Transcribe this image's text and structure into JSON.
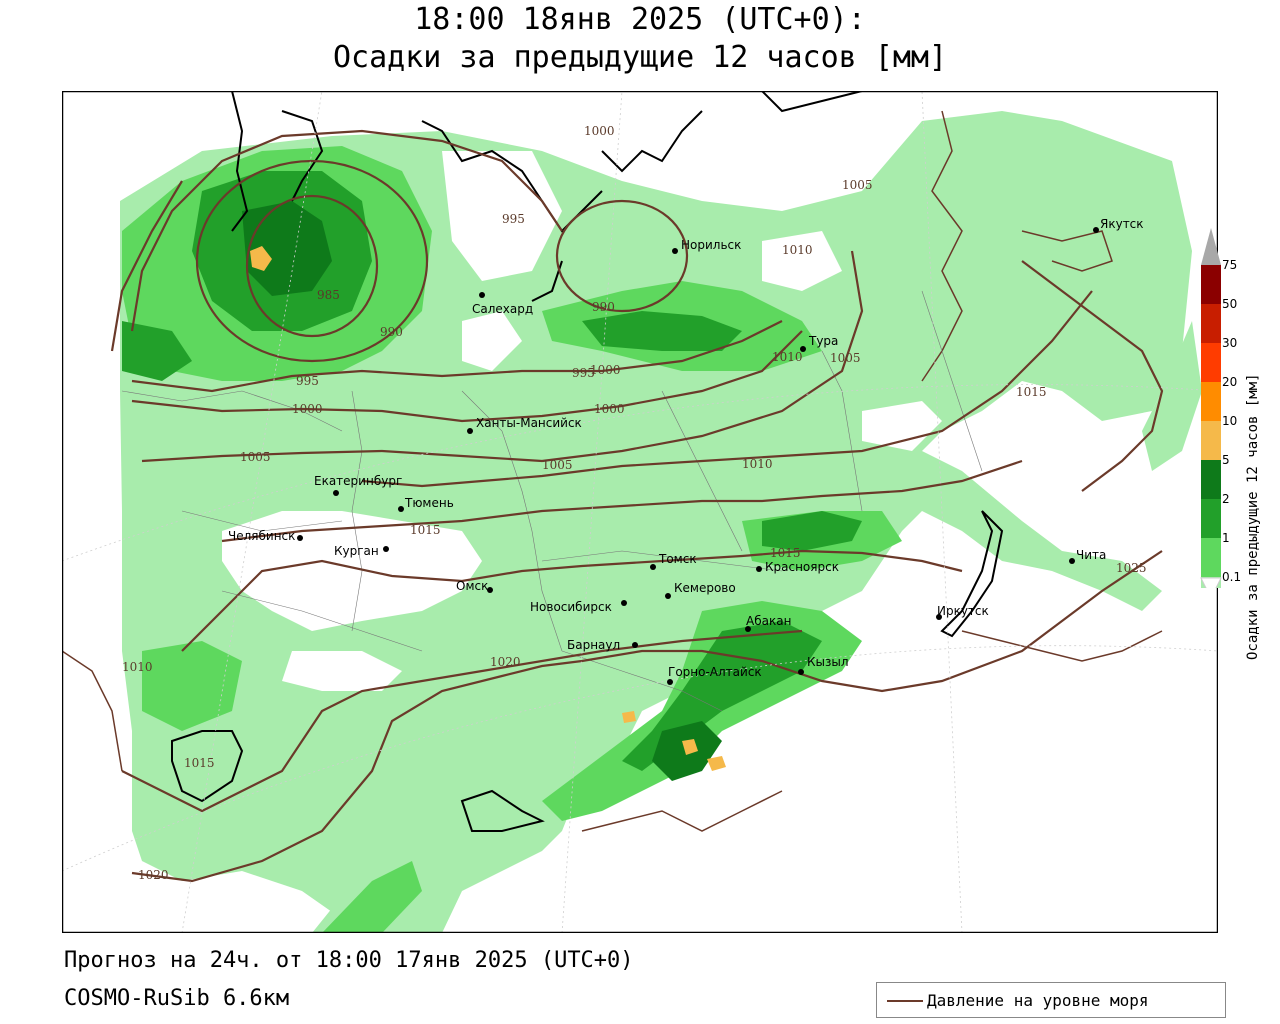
{
  "title_line1": "18:00 18янв 2025 (UTC+0):",
  "title_line2": "Осадки за предыдущие 12 часов [мм]",
  "footer_forecast": "Прогноз на 24ч. от 18:00 17янв 2025 (UTC+0)",
  "footer_model": "COSMO-RuSib 6.6км",
  "legend_pressure": "Давление на уровне моря",
  "scale_title": "Осадки за предыдущие 12 часов [мм]",
  "scale": [
    {
      "label": "75",
      "color": "#8b0000"
    },
    {
      "label": "50",
      "color": "#c81e00"
    },
    {
      "label": "30",
      "color": "#ff3c00"
    },
    {
      "label": "20",
      "color": "#ff8c00"
    },
    {
      "label": "10",
      "color": "#f5b94a"
    },
    {
      "label": "5",
      "color": "#0e7a1a"
    },
    {
      "label": "2",
      "color": "#22a02a"
    },
    {
      "label": "1",
      "color": "#5ed85e"
    },
    {
      "label": "0.1",
      "color": "#a8ecac"
    }
  ],
  "cities": [
    {
      "name": "Якутск"
    },
    {
      "name": "Норильск"
    },
    {
      "name": "Салехард"
    },
    {
      "name": "Тура"
    },
    {
      "name": "Ханты-Мансийск"
    },
    {
      "name": "Екатеринбург"
    },
    {
      "name": "Тюмень"
    },
    {
      "name": "Челябинск"
    },
    {
      "name": "Курган"
    },
    {
      "name": "Омск"
    },
    {
      "name": "Новосибирск"
    },
    {
      "name": "Томск"
    },
    {
      "name": "Красноярск"
    },
    {
      "name": "Кемерово"
    },
    {
      "name": "Барнаул"
    },
    {
      "name": "Абакан"
    },
    {
      "name": "Горно-Алтайск"
    },
    {
      "name": "Кызыл"
    },
    {
      "name": "Иркутск"
    },
    {
      "name": "Чита"
    }
  ],
  "isobar_labels": [
    "1000",
    "995",
    "985",
    "990",
    "995",
    "1000",
    "1005",
    "1000",
    "1005",
    "1010",
    "995",
    "1000",
    "1005",
    "990",
    "1005",
    "1010",
    "1015",
    "1015",
    "1020",
    "1010",
    "1015",
    "1020",
    "1025",
    "1015",
    "1010"
  ]
}
